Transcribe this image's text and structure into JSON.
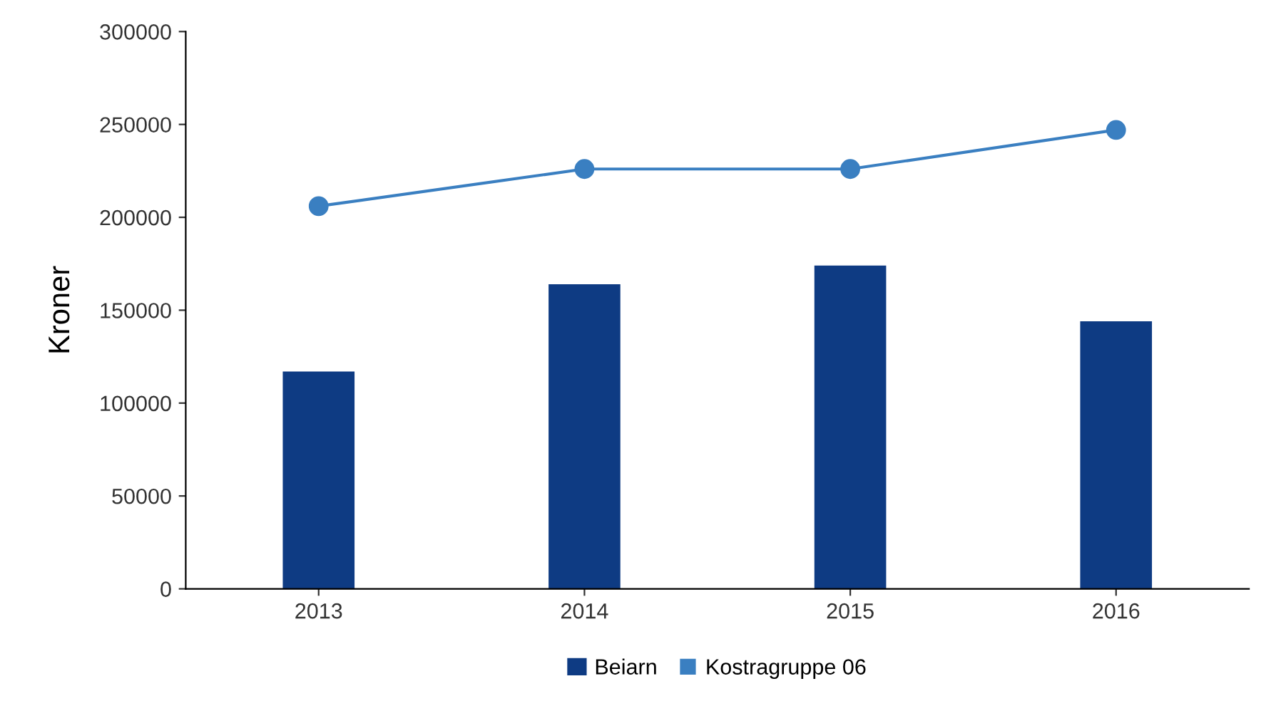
{
  "chart_data": {
    "type": "bar",
    "ylabel": "Kroner",
    "categories": [
      "2013",
      "2014",
      "2015",
      "2016"
    ],
    "series": [
      {
        "name": "Beiarn",
        "color": "#0e3b83",
        "values": [
          117000,
          164000,
          174000,
          144000
        ]
      },
      {
        "name": "Kostragruppe 06",
        "type": "line",
        "color": "#3a7fc1",
        "values": [
          206000,
          226000,
          226000,
          247000
        ]
      }
    ],
    "ylim": [
      0,
      300000
    ],
    "yticks": [
      0,
      50000,
      100000,
      150000,
      200000,
      250000,
      300000
    ],
    "grid": false,
    "legend": "bottom",
    "marker": "circle",
    "line_style": "solid"
  }
}
